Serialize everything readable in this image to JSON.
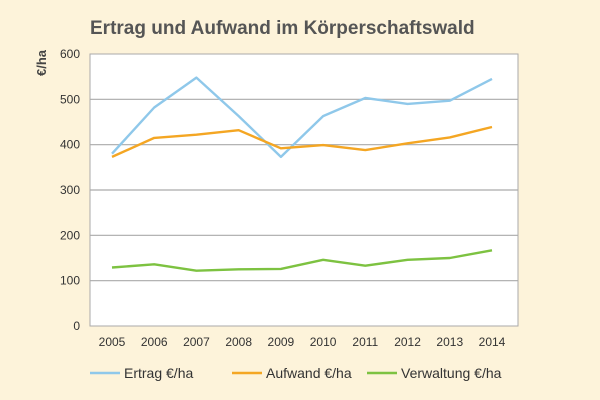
{
  "chart_data": {
    "type": "line",
    "title": "Ertrag und Aufwand im Körperschaftswald",
    "ylabel": "€/ha",
    "xlabel": "",
    "x": [
      "2005",
      "2006",
      "2007",
      "2008",
      "2009",
      "2010",
      "2011",
      "2012",
      "2013",
      "2014"
    ],
    "yticks": [
      0,
      100,
      200,
      300,
      400,
      500,
      600
    ],
    "ylim": [
      0,
      600
    ],
    "grid": true,
    "legend_position": "bottom",
    "series": [
      {
        "name": "Ertrag €/ha",
        "color": "#8fc8ea",
        "values": [
          380,
          482,
          548,
          463,
          373,
          463,
          503,
          490,
          497,
          545
        ]
      },
      {
        "name": "Aufwand €/ha",
        "color": "#f4a623",
        "values": [
          373,
          415,
          422,
          432,
          392,
          399,
          388,
          403,
          416,
          439
        ]
      },
      {
        "name": "Verwaltung €/ha",
        "color": "#7dc241",
        "values": [
          129,
          136,
          122,
          125,
          126,
          146,
          133,
          146,
          150,
          167
        ]
      }
    ]
  }
}
